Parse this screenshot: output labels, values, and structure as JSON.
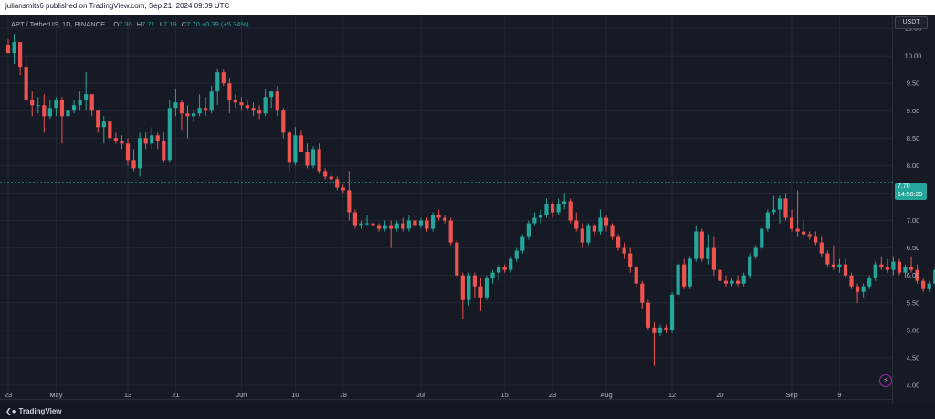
{
  "header": {
    "published": "juliansmits6 published on TradingView.com, Sep 21, 2024 09:09 UTC"
  },
  "legend": {
    "symbol": "APT / TetherUS, 1D, BINANCE",
    "open_label": "O",
    "open": "7.30",
    "high_label": "H",
    "high": "7.71",
    "low_label": "L",
    "low": "7.19",
    "close_label": "C",
    "close": "7.70",
    "change": "+0.39 (+5.34%)"
  },
  "currency_button": "USDT",
  "last_price": {
    "price": "7.70",
    "countdown": "14:50:29"
  },
  "footer": {
    "brand": "TradingView"
  },
  "colors": {
    "up": "#26a69a",
    "down": "#ef5350",
    "background": "#161a25",
    "grid": "#232733"
  },
  "icons": {
    "alert": "lightning-icon",
    "logo": "tradingview-logo-icon"
  },
  "chart_data": {
    "type": "candlestick",
    "title": "APT / TetherUS, 1D, BINANCE",
    "ylim": [
      3.75,
      10.75
    ],
    "y_ticks": [
      "10.50",
      "10.00",
      "9.50",
      "9.00",
      "8.50",
      "8.00",
      "7.50",
      "7.00",
      "6.50",
      "6.00",
      "5.50",
      "5.00",
      "4.50",
      "4.00"
    ],
    "x_labels": [
      {
        "label": "23",
        "day": 0
      },
      {
        "label": "May",
        "day": 8
      },
      {
        "label": "13",
        "day": 20
      },
      {
        "label": "21",
        "day": 28
      },
      {
        "label": "Jun",
        "day": 39
      },
      {
        "label": "10",
        "day": 48
      },
      {
        "label": "18",
        "day": 56
      },
      {
        "label": "Jul",
        "day": 69
      },
      {
        "label": "15",
        "day": 83
      },
      {
        "label": "23",
        "day": 91
      },
      {
        "label": "Aug",
        "day": 100
      },
      {
        "label": "12",
        "day": 111
      },
      {
        "label": "20",
        "day": 119
      },
      {
        "label": "Sep",
        "day": 131
      },
      {
        "label": "9",
        "day": 139
      }
    ],
    "grid": true,
    "candles": [
      [
        10.2,
        10.3,
        10.05,
        10.05
      ],
      [
        10.05,
        10.4,
        9.85,
        10.25
      ],
      [
        10.25,
        10.25,
        9.65,
        9.8
      ],
      [
        9.8,
        9.95,
        9.15,
        9.2
      ],
      [
        9.2,
        9.35,
        8.9,
        9.1
      ],
      [
        9.1,
        9.25,
        8.95,
        9.1
      ],
      [
        9.1,
        9.3,
        8.6,
        8.9
      ],
      [
        8.9,
        9.2,
        8.85,
        9.05
      ],
      [
        9.05,
        9.25,
        8.9,
        9.2
      ],
      [
        9.2,
        9.25,
        8.4,
        8.9
      ],
      [
        8.9,
        9.1,
        8.35,
        9.0
      ],
      [
        9.0,
        9.2,
        8.95,
        9.1
      ],
      [
        9.1,
        9.35,
        9.0,
        9.2
      ],
      [
        9.2,
        9.7,
        9.0,
        9.3
      ],
      [
        9.3,
        9.3,
        8.9,
        9.0
      ],
      [
        9.0,
        9.0,
        8.6,
        8.7
      ],
      [
        8.7,
        8.9,
        8.4,
        8.8
      ],
      [
        8.8,
        8.9,
        8.4,
        8.5
      ],
      [
        8.5,
        8.6,
        8.4,
        8.45
      ],
      [
        8.45,
        8.55,
        8.3,
        8.4
      ],
      [
        8.4,
        8.5,
        8.0,
        8.1
      ],
      [
        8.1,
        8.3,
        7.9,
        7.95
      ],
      [
        7.95,
        8.6,
        7.8,
        8.5
      ],
      [
        8.5,
        8.6,
        8.3,
        8.4
      ],
      [
        8.4,
        8.7,
        8.3,
        8.55
      ],
      [
        8.55,
        8.6,
        8.3,
        8.45
      ],
      [
        8.45,
        8.6,
        8.05,
        8.1
      ],
      [
        8.1,
        9.2,
        8.05,
        9.05
      ],
      [
        9.05,
        9.4,
        8.9,
        9.15
      ],
      [
        9.15,
        9.2,
        8.65,
        8.95
      ],
      [
        8.95,
        9.1,
        8.5,
        8.9
      ],
      [
        8.9,
        9.0,
        8.8,
        8.95
      ],
      [
        8.95,
        9.3,
        8.9,
        9.05
      ],
      [
        9.05,
        9.25,
        8.9,
        9.0
      ],
      [
        9.0,
        9.45,
        8.95,
        9.35
      ],
      [
        9.35,
        9.75,
        9.1,
        9.7
      ],
      [
        9.7,
        9.75,
        9.45,
        9.5
      ],
      [
        9.5,
        9.6,
        8.95,
        9.2
      ],
      [
        9.2,
        9.3,
        9.05,
        9.15
      ],
      [
        9.15,
        9.25,
        9.0,
        9.1
      ],
      [
        9.1,
        9.2,
        9.0,
        9.05
      ],
      [
        9.05,
        9.15,
        8.9,
        9.0
      ],
      [
        9.0,
        9.1,
        8.85,
        8.95
      ],
      [
        8.95,
        9.4,
        8.9,
        9.25
      ],
      [
        9.25,
        9.35,
        9.05,
        9.35
      ],
      [
        9.35,
        9.45,
        8.9,
        9.0
      ],
      [
        9.0,
        9.05,
        8.5,
        8.6
      ],
      [
        8.6,
        8.65,
        7.9,
        8.05
      ],
      [
        8.05,
        8.7,
        8.0,
        8.55
      ],
      [
        8.55,
        8.65,
        8.25,
        8.25
      ],
      [
        8.25,
        8.4,
        7.95,
        8.0
      ],
      [
        8.0,
        8.35,
        7.95,
        8.3
      ],
      [
        8.3,
        8.4,
        7.85,
        7.9
      ],
      [
        7.9,
        7.95,
        7.75,
        7.8
      ],
      [
        7.8,
        7.9,
        7.7,
        7.75
      ],
      [
        7.75,
        7.8,
        7.55,
        7.6
      ],
      [
        7.6,
        7.65,
        7.5,
        7.55
      ],
      [
        7.55,
        7.9,
        7.0,
        7.15
      ],
      [
        7.15,
        7.2,
        6.85,
        6.9
      ],
      [
        6.9,
        7.0,
        6.85,
        6.95
      ],
      [
        6.95,
        7.1,
        6.9,
        6.95
      ],
      [
        6.95,
        7.0,
        6.85,
        6.9
      ],
      [
        6.9,
        6.95,
        6.8,
        6.85
      ],
      [
        6.85,
        7.0,
        6.8,
        6.9
      ],
      [
        6.9,
        7.0,
        6.5,
        6.85
      ],
      [
        6.85,
        7.0,
        6.8,
        6.95
      ],
      [
        6.95,
        7.05,
        6.8,
        6.85
      ],
      [
        6.85,
        7.1,
        6.8,
        7.0
      ],
      [
        7.0,
        7.1,
        6.85,
        6.9
      ],
      [
        6.9,
        7.05,
        6.85,
        7.0
      ],
      [
        7.0,
        7.05,
        6.8,
        6.85
      ],
      [
        6.85,
        7.15,
        6.8,
        7.1
      ],
      [
        7.1,
        7.2,
        7.0,
        7.05
      ],
      [
        7.05,
        7.1,
        6.95,
        7.0
      ],
      [
        7.0,
        7.05,
        6.55,
        6.6
      ],
      [
        6.6,
        6.65,
        5.95,
        6.0
      ],
      [
        6.0,
        6.05,
        5.2,
        5.55
      ],
      [
        5.55,
        6.05,
        5.45,
        6.0
      ],
      [
        6.0,
        6.05,
        5.6,
        5.8
      ],
      [
        5.8,
        5.95,
        5.35,
        5.6
      ],
      [
        5.6,
        6.0,
        5.55,
        5.95
      ],
      [
        5.95,
        6.1,
        5.85,
        6.05
      ],
      [
        6.05,
        6.2,
        5.9,
        6.15
      ],
      [
        6.15,
        6.2,
        6.05,
        6.1
      ],
      [
        6.1,
        6.35,
        6.05,
        6.3
      ],
      [
        6.3,
        6.5,
        6.25,
        6.45
      ],
      [
        6.45,
        6.75,
        6.4,
        6.7
      ],
      [
        6.7,
        7.0,
        6.65,
        6.95
      ],
      [
        6.95,
        7.15,
        6.9,
        7.05
      ],
      [
        7.05,
        7.2,
        6.95,
        7.1
      ],
      [
        7.1,
        7.4,
        7.05,
        7.3
      ],
      [
        7.3,
        7.35,
        7.05,
        7.15
      ],
      [
        7.15,
        7.4,
        7.1,
        7.3
      ],
      [
        7.3,
        7.5,
        7.2,
        7.35
      ],
      [
        7.35,
        7.4,
        6.95,
        7.0
      ],
      [
        7.0,
        7.15,
        6.8,
        6.85
      ],
      [
        6.85,
        6.95,
        6.5,
        6.6
      ],
      [
        6.6,
        6.95,
        6.55,
        6.9
      ],
      [
        6.9,
        6.95,
        6.7,
        6.8
      ],
      [
        6.8,
        7.2,
        6.75,
        7.05
      ],
      [
        7.05,
        7.1,
        6.8,
        6.9
      ],
      [
        6.9,
        6.95,
        6.65,
        6.7
      ],
      [
        6.7,
        6.75,
        6.45,
        6.5
      ],
      [
        6.5,
        6.6,
        6.3,
        6.4
      ],
      [
        6.4,
        6.5,
        6.05,
        6.15
      ],
      [
        6.15,
        6.2,
        5.8,
        5.85
      ],
      [
        5.85,
        5.9,
        5.4,
        5.5
      ],
      [
        5.5,
        5.55,
        5.0,
        5.05
      ],
      [
        5.05,
        5.15,
        4.35,
        4.95
      ],
      [
        4.95,
        5.1,
        4.9,
        5.05
      ],
      [
        5.05,
        5.1,
        4.95,
        5.0
      ],
      [
        5.0,
        5.7,
        4.95,
        5.65
      ],
      [
        5.65,
        6.3,
        5.6,
        6.2
      ],
      [
        6.2,
        6.3,
        5.75,
        5.8
      ],
      [
        5.8,
        6.35,
        5.75,
        6.3
      ],
      [
        6.3,
        6.9,
        6.25,
        6.8
      ],
      [
        6.8,
        6.85,
        6.25,
        6.3
      ],
      [
        6.3,
        6.75,
        6.2,
        6.5
      ],
      [
        6.5,
        6.7,
        6.0,
        6.1
      ],
      [
        6.1,
        6.2,
        5.8,
        5.9
      ],
      [
        5.9,
        6.0,
        5.8,
        5.85
      ],
      [
        5.85,
        5.95,
        5.8,
        5.9
      ],
      [
        5.9,
        6.0,
        5.8,
        5.85
      ],
      [
        5.85,
        6.05,
        5.8,
        6.0
      ],
      [
        6.0,
        6.4,
        5.95,
        6.35
      ],
      [
        6.35,
        6.55,
        6.3,
        6.5
      ],
      [
        6.5,
        6.9,
        6.45,
        6.85
      ],
      [
        6.85,
        7.2,
        6.8,
        7.15
      ],
      [
        7.15,
        7.45,
        7.1,
        7.2
      ],
      [
        7.2,
        7.45,
        6.95,
        7.4
      ],
      [
        7.4,
        7.5,
        7.0,
        7.05
      ],
      [
        7.05,
        7.2,
        6.8,
        6.85
      ],
      [
        6.85,
        7.55,
        6.7,
        6.8
      ],
      [
        6.8,
        7.0,
        6.7,
        6.75
      ],
      [
        6.75,
        6.8,
        6.65,
        6.7
      ],
      [
        6.7,
        6.8,
        6.55,
        6.6
      ],
      [
        6.6,
        6.7,
        6.35,
        6.4
      ],
      [
        6.4,
        6.45,
        6.15,
        6.2
      ],
      [
        6.2,
        6.55,
        6.1,
        6.15
      ],
      [
        6.15,
        6.3,
        6.05,
        6.2
      ],
      [
        6.2,
        6.3,
        5.95,
        6.0
      ],
      [
        6.0,
        6.05,
        5.75,
        5.8
      ],
      [
        5.8,
        5.85,
        5.5,
        5.7
      ],
      [
        5.7,
        5.85,
        5.6,
        5.8
      ],
      [
        5.8,
        6.0,
        5.75,
        5.95
      ],
      [
        5.95,
        6.25,
        5.9,
        6.2
      ],
      [
        6.2,
        6.35,
        6.1,
        6.15
      ],
      [
        6.15,
        6.3,
        6.05,
        6.1
      ],
      [
        6.1,
        6.35,
        6.0,
        6.25
      ],
      [
        6.25,
        6.3,
        6.0,
        6.05
      ],
      [
        6.05,
        6.2,
        5.95,
        6.15
      ],
      [
        6.15,
        6.35,
        6.05,
        6.1
      ],
      [
        6.1,
        6.2,
        5.85,
        5.9
      ],
      [
        5.9,
        5.95,
        5.7,
        5.75
      ],
      [
        5.75,
        5.9,
        5.7,
        5.85
      ],
      [
        5.85,
        6.15,
        5.8,
        6.1
      ],
      [
        6.1,
        6.65,
        6.05,
        6.6
      ],
      [
        6.6,
        7.2,
        6.55,
        7.15
      ],
      [
        7.15,
        7.5,
        7.1,
        7.3
      ],
      [
        7.3,
        7.71,
        7.19,
        7.7
      ]
    ]
  }
}
